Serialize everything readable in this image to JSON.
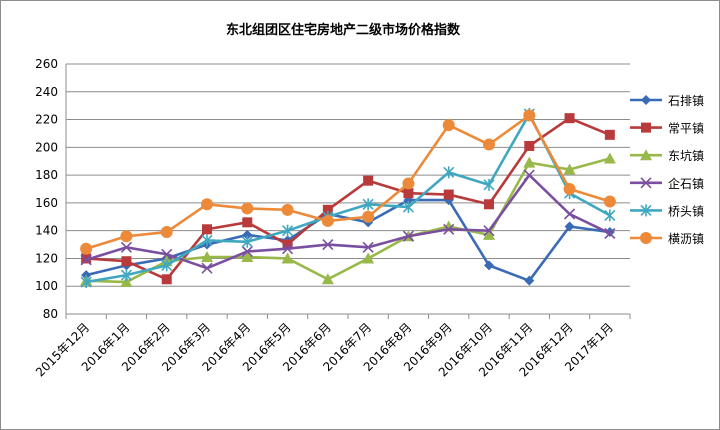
{
  "chart_data": {
    "type": "line",
    "title": "东北组团区住宅房地产二级市场价格指数",
    "xlabel": "",
    "ylabel": "",
    "ylim": [
      80,
      260
    ],
    "yticks": [
      80,
      100,
      120,
      140,
      160,
      180,
      200,
      220,
      240,
      260
    ],
    "grid": true,
    "legend_position": "right",
    "categories": [
      "2015年12月",
      "2016年1月",
      "2016年2月",
      "2016年3月",
      "2016年4月",
      "2016年5月",
      "2016年6月",
      "2016年7月",
      "2016年8月",
      "2016年9月",
      "2016年10月",
      "2016年11月",
      "2016年12月",
      "2017年1月"
    ],
    "series": [
      {
        "name": "石排镇",
        "color": "#3a6bb5",
        "marker": "diamond",
        "values": [
          108,
          115,
          120,
          130,
          137,
          133,
          152,
          146,
          162,
          162,
          115,
          104,
          143,
          139
        ]
      },
      {
        "name": "常平镇",
        "color": "#b83a3a",
        "marker": "square",
        "values": [
          120,
          118,
          105,
          141,
          146,
          130,
          155,
          176,
          167,
          166,
          159,
          201,
          221,
          209
        ]
      },
      {
        "name": "东坑镇",
        "color": "#98b84a",
        "marker": "triangle",
        "values": [
          104,
          103,
          118,
          121,
          121,
          120,
          105,
          120,
          136,
          143,
          137,
          189,
          184,
          192
        ]
      },
      {
        "name": "企石镇",
        "color": "#7a4fa0",
        "marker": "x",
        "values": [
          119,
          128,
          123,
          113,
          125,
          127,
          130,
          128,
          136,
          141,
          140,
          180,
          152,
          138
        ]
      },
      {
        "name": "桥头镇",
        "color": "#3fa8c0",
        "marker": "star",
        "values": [
          103,
          108,
          115,
          133,
          132,
          140,
          150,
          159,
          157,
          182,
          173,
          224,
          167,
          151
        ]
      },
      {
        "name": "横沥镇",
        "color": "#ec8a3a",
        "marker": "circle",
        "values": [
          127,
          136,
          139,
          159,
          156,
          155,
          147,
          150,
          174,
          216,
          202,
          223,
          170,
          161
        ]
      }
    ]
  }
}
